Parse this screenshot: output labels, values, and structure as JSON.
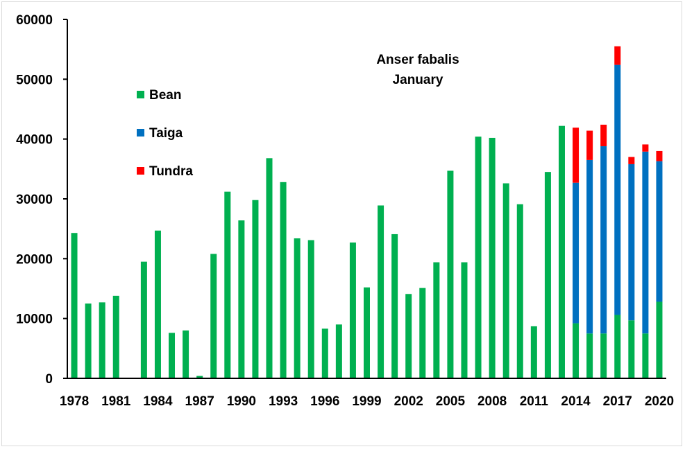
{
  "colors": {
    "bean": "#00b050",
    "taiga": "#0070c0",
    "tundra": "#ff0000"
  },
  "chart_data": {
    "type": "bar",
    "stacked": true,
    "title_lines": [
      "Anser fabalis",
      "January"
    ],
    "xlabel": "",
    "ylabel": "",
    "ylim": [
      0,
      60000
    ],
    "yticks": [
      0,
      10000,
      20000,
      30000,
      40000,
      50000,
      60000
    ],
    "x_tick_labels": [
      "1978",
      "1981",
      "1984",
      "1987",
      "1990",
      "1993",
      "1996",
      "1999",
      "2002",
      "2005",
      "2008",
      "2011",
      "2014",
      "2017",
      "2020"
    ],
    "categories": [
      "1978",
      "1979",
      "1980",
      "1981",
      "1982",
      "1983",
      "1984",
      "1985",
      "1986",
      "1987",
      "1988",
      "1989",
      "1990",
      "1991",
      "1992",
      "1993",
      "1994",
      "1995",
      "1996",
      "1997",
      "1998",
      "1999",
      "2000",
      "2001",
      "2002",
      "2003",
      "2004",
      "2005",
      "2006",
      "2007",
      "2008",
      "2009",
      "2010",
      "2011",
      "2012",
      "2013",
      "2014",
      "2015",
      "2016",
      "2017",
      "2018",
      "2019",
      "2020"
    ],
    "legend_position": "upper-left",
    "grid": false,
    "series": [
      {
        "name": "Bean",
        "color_key": "bean",
        "values": [
          24300,
          12500,
          12700,
          13800,
          null,
          19500,
          24700,
          7600,
          8000,
          400,
          20800,
          31200,
          26400,
          29800,
          36800,
          32800,
          23400,
          23100,
          8300,
          9000,
          22700,
          15200,
          28900,
          24100,
          14100,
          15100,
          19400,
          34700,
          19400,
          40400,
          40200,
          32600,
          29100,
          8700,
          34500,
          42200,
          9200,
          7500,
          7500,
          10600,
          9700,
          7500,
          12800
        ]
      },
      {
        "name": "Taiga",
        "color_key": "taiga",
        "values": [
          null,
          null,
          null,
          null,
          null,
          null,
          null,
          null,
          null,
          null,
          null,
          null,
          null,
          null,
          null,
          null,
          null,
          null,
          null,
          null,
          null,
          null,
          null,
          null,
          null,
          null,
          null,
          null,
          null,
          null,
          null,
          null,
          null,
          null,
          null,
          null,
          23500,
          29000,
          31300,
          41800,
          26100,
          30400,
          23500
        ]
      },
      {
        "name": "Tundra",
        "color_key": "tundra",
        "values": [
          null,
          null,
          null,
          null,
          null,
          null,
          null,
          null,
          null,
          null,
          null,
          null,
          null,
          null,
          null,
          null,
          null,
          null,
          null,
          null,
          null,
          null,
          null,
          null,
          null,
          null,
          null,
          null,
          null,
          null,
          null,
          null,
          null,
          null,
          null,
          null,
          9200,
          4900,
          3600,
          3100,
          1200,
          1200,
          1700
        ]
      }
    ]
  }
}
